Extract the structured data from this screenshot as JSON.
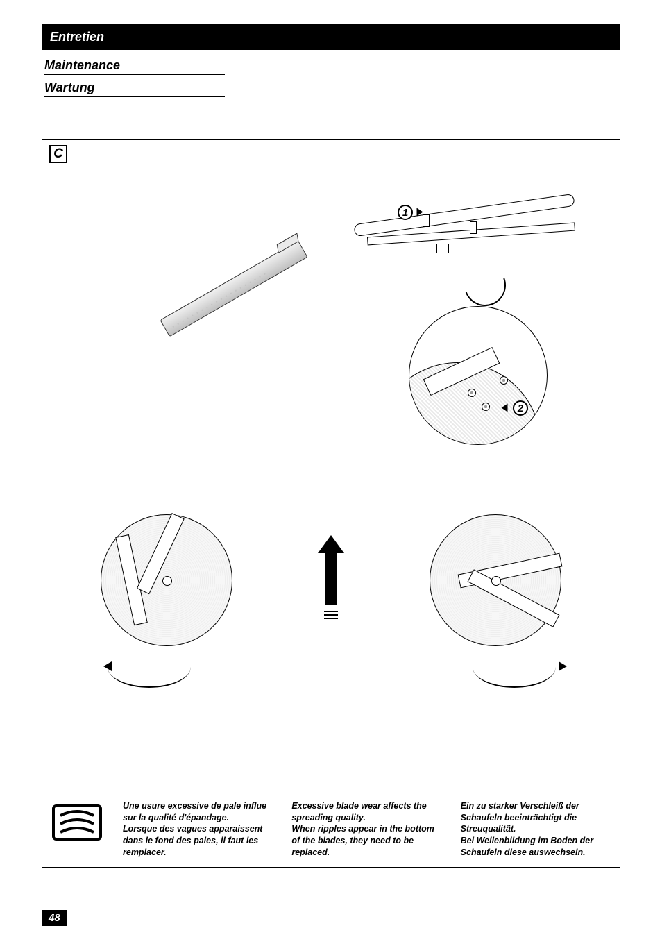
{
  "headers": {
    "fr": "Entretien",
    "en": "Maintenance",
    "de": "Wartung"
  },
  "section_label": "C",
  "callouts": {
    "one": "1",
    "two": "2"
  },
  "notes": {
    "fr": "Une usure excessive de pale influe sur la qualité d'épandage.\nLorsque des vagues apparaissent dans le fond des pales, il faut les remplacer.",
    "en": "Excessive blade wear affects the spreading quality.\nWhen ripples appear in the bottom of the blades, they need to be replaced.",
    "de": "Ein zu starker Verschleiß der Schaufeln beeinträchtigt die Streuqualität.\nBei Wellenbildung im Boden der Schaufeln diese auswechseln."
  },
  "page_number": "48",
  "colors": {
    "black": "#000000",
    "white": "#ffffff",
    "hatch": "#e9e9e9"
  }
}
